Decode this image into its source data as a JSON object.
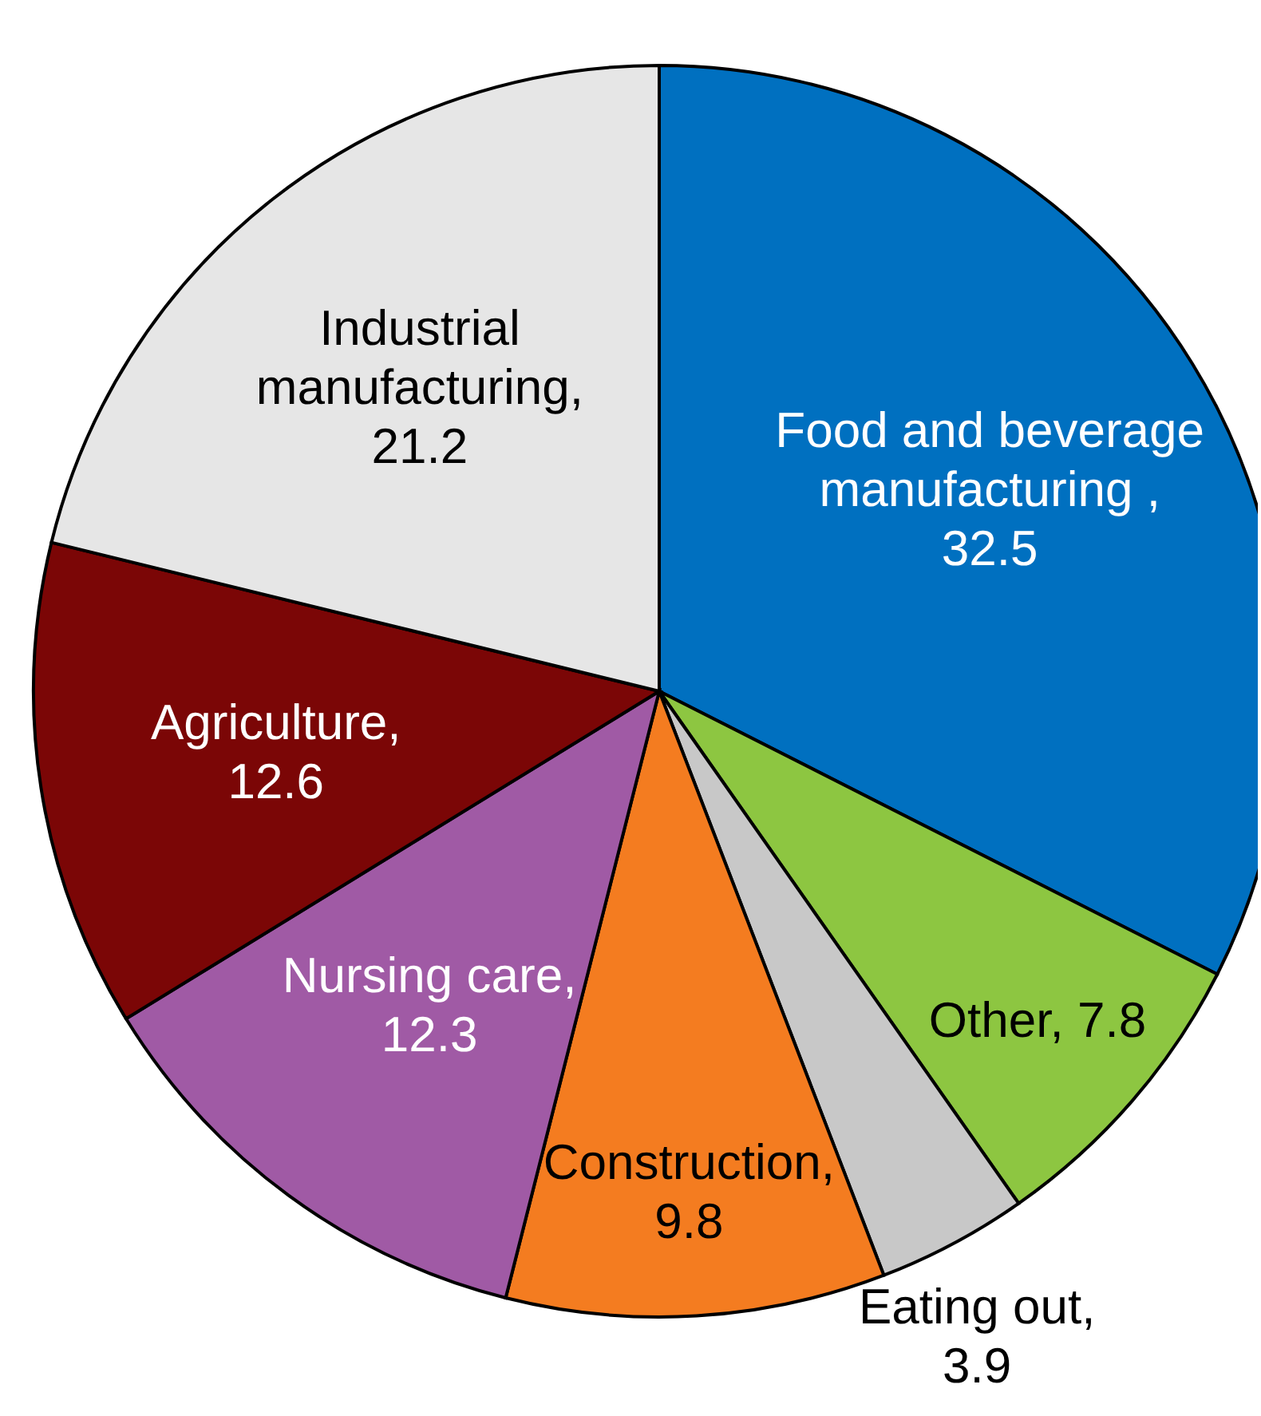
{
  "chart_data": {
    "type": "pie",
    "categories": [
      "Food and beverage manufacturing ",
      "Other",
      "Eating out",
      "Construction",
      "Nursing care",
      "Agriculture",
      "Industrial manufacturing"
    ],
    "values": [
      32.5,
      7.8,
      3.9,
      9.8,
      12.3,
      12.6,
      21.2
    ],
    "colors": [
      "#0070c0",
      "#8dc641",
      "#c8c8c8",
      "#f47c20",
      "#a05aa5",
      "#7b0606",
      "#e6e6e6"
    ],
    "value_labels": [
      ", 32.5",
      ", 7.8",
      ", 3.9",
      ", 9.8",
      ", 12.3",
      ", 12.6",
      ", 21.2"
    ]
  }
}
